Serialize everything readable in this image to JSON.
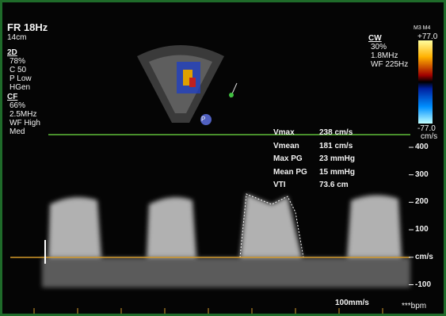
{
  "header": {
    "frame_rate": "FR 18Hz",
    "depth": "14cm"
  },
  "settings_2d": {
    "title": "2D",
    "lines": [
      "78%",
      "C 50",
      "P Low",
      "HGen"
    ]
  },
  "settings_cf": {
    "title": "CF",
    "lines": [
      "66%",
      "2.5MHz",
      "WF High",
      "Med"
    ]
  },
  "settings_cw": {
    "title": "CW",
    "lines": [
      "30%",
      "1.8MHz",
      "WF 225Hz"
    ]
  },
  "color_bar": {
    "title": "M3 M4",
    "max": "+77.0",
    "min": "-77.0",
    "unit": "cm/s"
  },
  "probe_marker": "P",
  "measurements": [
    {
      "label": "Vmax",
      "value": "238 cm/s"
    },
    {
      "label": "Vmean",
      "value": "181 cm/s"
    },
    {
      "label": "Max PG",
      "value": "23 mmHg"
    },
    {
      "label": "Mean PG",
      "value": "15 mmHg"
    },
    {
      "label": "VTI",
      "value": "73.6 cm"
    }
  ],
  "velocity_scale": {
    "labels": [
      "400",
      "300",
      "200",
      "100",
      "cm/s",
      "-100"
    ]
  },
  "sweep_speed": "100mm/s",
  "heart_rate": "***bpm"
}
